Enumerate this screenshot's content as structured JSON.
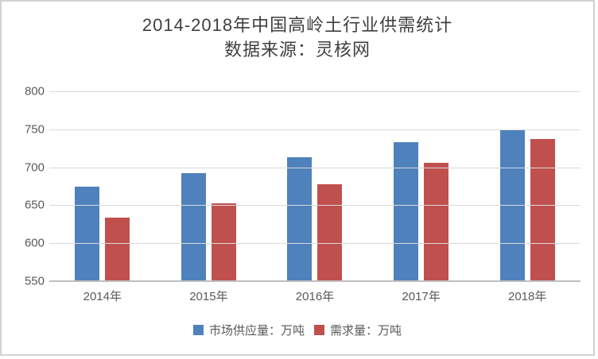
{
  "chart": {
    "title": "2014-2018年中国高岭土行业供需统计",
    "subtitle": "数据来源：灵核网"
  },
  "chart_data": {
    "type": "bar",
    "title": "2014-2018年中国高岭土行业供需统计",
    "subtitle": "数据来源：灵核网",
    "categories": [
      "2014年",
      "2015年",
      "2016年",
      "2017年",
      "2018年"
    ],
    "series": [
      {
        "name": "市场供应量：万吨",
        "color": "#4F81BD",
        "values": [
          675,
          692,
          713,
          733,
          750
        ]
      },
      {
        "name": "需求量：万吨",
        "color": "#C0504D",
        "values": [
          634,
          653,
          678,
          706,
          737
        ]
      }
    ],
    "ylim": [
      550,
      800
    ],
    "yticks": [
      800,
      750,
      700,
      650,
      600,
      550
    ],
    "xlabel": "",
    "ylabel": "",
    "grid": true,
    "legend_position": "bottom",
    "colors": {
      "gridline": "#D9D9D9",
      "axis_line": "#BFBFBF",
      "tick_text": "#595959",
      "title_text": "#3F3F3F"
    }
  }
}
